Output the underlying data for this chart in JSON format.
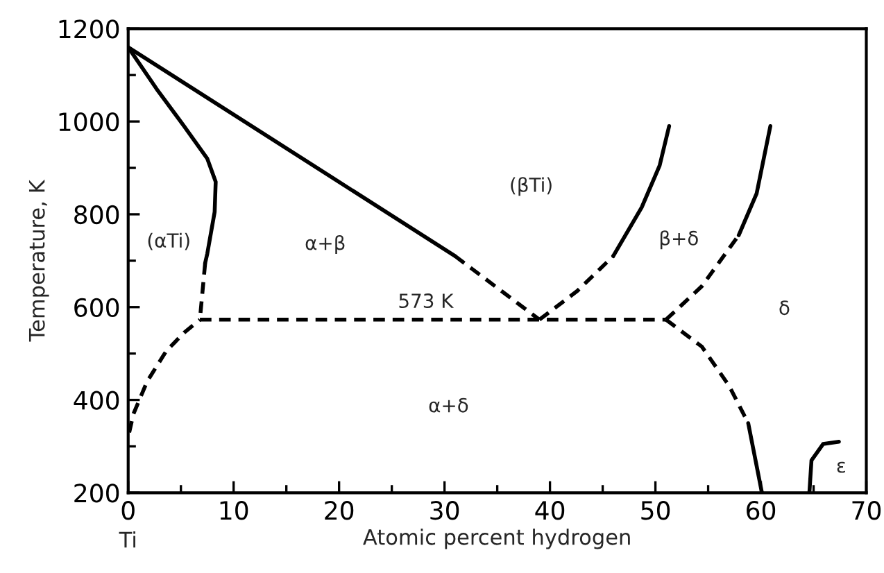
{
  "chart_data": {
    "type": "line",
    "xlabel": "Atomic percent hydrogen",
    "ylabel": "Temperature, K",
    "xlim": [
      0,
      70
    ],
    "ylim": [
      200,
      1200
    ],
    "xticks": [
      0,
      {
        "value": 5,
        "label": null
      },
      10,
      {
        "value": 15,
        "label": null
      },
      20,
      {
        "value": 25,
        "label": null
      },
      30,
      {
        "value": 35,
        "label": null
      },
      40,
      {
        "value": 45,
        "label": null
      },
      50,
      {
        "value": 55,
        "label": null
      },
      60,
      {
        "value": 65,
        "label": null
      },
      70
    ],
    "yticks": [
      200,
      {
        "value": 300,
        "label": null
      },
      400,
      {
        "value": 500,
        "label": null
      },
      600,
      {
        "value": 700,
        "label": null
      },
      800,
      {
        "value": 900,
        "label": null
      },
      1000,
      {
        "value": 1100,
        "label": null
      },
      1200
    ],
    "grid": false,
    "legend": false,
    "marker": "none",
    "series": [
      {
        "color": "#000000",
        "line_style": "solid",
        "x": [
          0,
          2.7,
          5.3,
          7.5,
          8.3,
          8.2,
          7.5,
          7.3
        ],
        "values": [
          1160,
          1070,
          990,
          920,
          870,
          805,
          715,
          695
        ]
      },
      {
        "color": "#000000",
        "line_style": "dashed",
        "x": [
          7.3,
          6.8
        ],
        "values": [
          695,
          573
        ]
      },
      {
        "color": "#000000",
        "line_style": "dashed",
        "x": [
          0.1,
          0.5,
          1.8,
          3.6,
          5.3,
          6.8
        ],
        "values": [
          330,
          370,
          440,
          505,
          545,
          573
        ]
      },
      {
        "color": "#000000",
        "line_style": "solid",
        "x": [
          0,
          31
        ],
        "values": [
          1160,
          710
        ]
      },
      {
        "color": "#000000",
        "line_style": "dashed",
        "x": [
          31,
          39
        ],
        "values": [
          710,
          573
        ]
      },
      {
        "color": "#000000",
        "line_style": "dashed",
        "x": [
          6.8,
          51
        ],
        "values": [
          573,
          573
        ]
      },
      {
        "color": "#000000",
        "line_style": "dashed",
        "x": [
          39,
          42.6,
          46
        ],
        "values": [
          573,
          635,
          710
        ]
      },
      {
        "color": "#000000",
        "line_style": "solid",
        "x": [
          46,
          48.7,
          50.4,
          51.3
        ],
        "values": [
          710,
          815,
          905,
          990
        ]
      },
      {
        "color": "#000000",
        "line_style": "dashed",
        "x": [
          51,
          54.4,
          57.9
        ],
        "values": [
          573,
          645,
          755
        ]
      },
      {
        "color": "#000000",
        "line_style": "solid",
        "x": [
          57.9,
          59.6,
          60.9
        ],
        "values": [
          755,
          845,
          990
        ]
      },
      {
        "color": "#000000",
        "line_style": "dashed",
        "x": [
          51,
          54.4,
          57,
          58.8
        ],
        "values": [
          573,
          515,
          430,
          350
        ]
      },
      {
        "color": "#000000",
        "line_style": "solid",
        "x": [
          58.8,
          60.1
        ],
        "values": [
          350,
          200
        ]
      },
      {
        "color": "#000000",
        "line_style": "solid",
        "x": [
          64.6,
          64.8,
          65.9,
          67.4
        ],
        "values": [
          200,
          270,
          305,
          310
        ]
      }
    ],
    "annotations": [
      "(αTi)",
      "α+β",
      "573 K",
      "α+δ",
      "(βTi)",
      "β+δ",
      "δ",
      "ε",
      "Ti"
    ]
  }
}
